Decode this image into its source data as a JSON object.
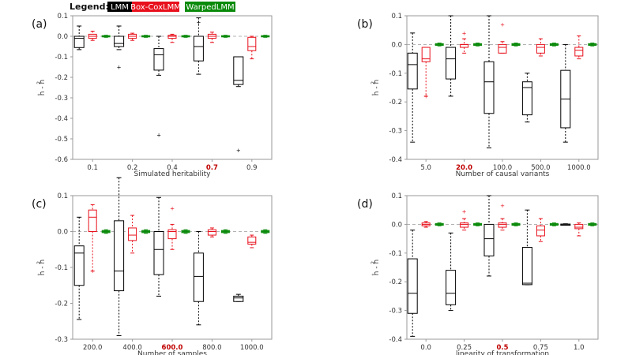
{
  "legend": {
    "title": "Legend:",
    "items": [
      {
        "label": "LMM",
        "bg": "#000000",
        "fg": "#ffffff"
      },
      {
        "label": "Box-CoxLMM",
        "bg": "#e8101c",
        "fg": "#ffffff"
      },
      {
        "label": "WarpedLMM",
        "bg": "#0a8a0a",
        "fg": "#ffffff"
      }
    ]
  },
  "colors": {
    "LMM": "#000000",
    "Box-CoxLMM": "#e8101c",
    "WarpedLMM": "#0a8a0a",
    "highlight": "#c00000",
    "zero_line": "#9a9a9a",
    "axis": "#999999"
  },
  "chart_data": [
    {
      "type": "box",
      "panel_label": "(a)",
      "xlabel": "Simulated heritability",
      "ylabel_num": "2",
      "ylabel_text": "ĥ  - h",
      "categories": [
        "0.1",
        "0.2",
        "0.4",
        "0.7",
        "0.9"
      ],
      "highlight_index": 3,
      "ylim": [
        -0.6,
        0.1
      ],
      "yticks": [
        -0.6,
        -0.5,
        -0.4,
        -0.3,
        -0.2,
        -0.1,
        0.0,
        0.1
      ],
      "series": [
        {
          "name": "LMM",
          "boxes": [
            {
              "whislo": -0.065,
              "q1": -0.055,
              "med": -0.01,
              "q3": 0.0,
              "whishi": 0.05,
              "fliers": []
            },
            {
              "whislo": -0.065,
              "q1": -0.05,
              "med": -0.035,
              "q3": 0.0,
              "whishi": 0.05,
              "fliers": [
                -0.15
              ]
            },
            {
              "whislo": -0.19,
              "q1": -0.165,
              "med": -0.09,
              "q3": -0.06,
              "whishi": 0.0,
              "fliers": [
                -0.48
              ]
            },
            {
              "whislo": -0.185,
              "q1": -0.12,
              "med": -0.05,
              "q3": 0.0,
              "whishi": 0.09,
              "fliers": [
                0.07
              ]
            },
            {
              "whislo": -0.245,
              "q1": -0.235,
              "med": -0.215,
              "q3": -0.1,
              "whishi": -0.1,
              "fliers": [
                -0.555
              ]
            }
          ]
        },
        {
          "name": "Box-CoxLMM",
          "boxes": [
            {
              "whislo": -0.02,
              "q1": -0.01,
              "med": 0.0,
              "q3": 0.01,
              "whishi": 0.025,
              "fliers": []
            },
            {
              "whislo": -0.02,
              "q1": -0.01,
              "med": 0.0,
              "q3": 0.01,
              "whishi": 0.015,
              "fliers": []
            },
            {
              "whislo": -0.03,
              "q1": -0.01,
              "med": 0.0,
              "q3": 0.005,
              "whishi": 0.01,
              "fliers": []
            },
            {
              "whislo": -0.03,
              "q1": -0.01,
              "med": 0.0,
              "q3": 0.01,
              "whishi": 0.02,
              "fliers": []
            },
            {
              "whislo": -0.11,
              "q1": -0.07,
              "med": -0.05,
              "q3": -0.005,
              "whishi": 0.0,
              "fliers": []
            }
          ]
        },
        {
          "name": "WarpedLMM",
          "boxes": [
            {
              "whislo": -0.005,
              "q1": -0.003,
              "med": 0.0,
              "q3": 0.003,
              "whishi": 0.005,
              "fliers": []
            },
            {
              "whislo": -0.005,
              "q1": -0.003,
              "med": 0.0,
              "q3": 0.003,
              "whishi": 0.005,
              "fliers": []
            },
            {
              "whislo": -0.005,
              "q1": -0.003,
              "med": 0.0,
              "q3": 0.003,
              "whishi": 0.005,
              "fliers": []
            },
            {
              "whislo": -0.005,
              "q1": -0.003,
              "med": 0.0,
              "q3": 0.003,
              "whishi": 0.005,
              "fliers": []
            },
            {
              "whislo": -0.005,
              "q1": -0.003,
              "med": 0.0,
              "q3": 0.003,
              "whishi": 0.005,
              "fliers": []
            }
          ]
        }
      ]
    },
    {
      "type": "box",
      "panel_label": "(b)",
      "xlabel": "Number of causal variants",
      "ylabel_num": "2",
      "ylabel_text": "ĥ  - h",
      "categories": [
        "5.0",
        "20.0",
        "100.0",
        "500.0",
        "1000.0"
      ],
      "highlight_index": 1,
      "ylim": [
        -0.4,
        0.1
      ],
      "yticks": [
        -0.4,
        -0.3,
        -0.2,
        -0.1,
        0.0,
        0.1
      ],
      "series": [
        {
          "name": "LMM",
          "boxes": [
            {
              "whislo": -0.34,
              "q1": -0.155,
              "med": -0.07,
              "q3": -0.03,
              "whishi": 0.04,
              "fliers": []
            },
            {
              "whislo": -0.18,
              "q1": -0.12,
              "med": -0.05,
              "q3": -0.01,
              "whishi": 0.1,
              "fliers": []
            },
            {
              "whislo": -0.36,
              "q1": -0.24,
              "med": -0.13,
              "q3": -0.06,
              "whishi": 0.1,
              "fliers": []
            },
            {
              "whislo": -0.27,
              "q1": -0.245,
              "med": -0.15,
              "q3": -0.13,
              "whishi": -0.1,
              "fliers": []
            },
            {
              "whislo": -0.34,
              "q1": -0.29,
              "med": -0.19,
              "q3": -0.09,
              "whishi": 0.0,
              "fliers": []
            }
          ]
        },
        {
          "name": "Box-CoxLMM",
          "boxes": [
            {
              "whislo": -0.18,
              "q1": -0.06,
              "med": -0.05,
              "q3": -0.01,
              "whishi": -0.01,
              "fliers": [
                -0.18
              ]
            },
            {
              "whislo": -0.03,
              "q1": -0.01,
              "med": 0.0,
              "q3": 0.0,
              "whishi": 0.02,
              "fliers": [
                0.04
              ]
            },
            {
              "whislo": -0.03,
              "q1": -0.03,
              "med": -0.01,
              "q3": 0.0,
              "whishi": 0.01,
              "fliers": [
                0.07
              ]
            },
            {
              "whislo": -0.04,
              "q1": -0.03,
              "med": -0.01,
              "q3": 0.0,
              "whishi": 0.02,
              "fliers": []
            },
            {
              "whislo": -0.05,
              "q1": -0.04,
              "med": -0.02,
              "q3": -0.01,
              "whishi": 0.03,
              "fliers": []
            }
          ]
        },
        {
          "name": "WarpedLMM",
          "boxes": [
            {
              "whislo": -0.005,
              "q1": -0.003,
              "med": 0.0,
              "q3": 0.003,
              "whishi": 0.005,
              "fliers": []
            },
            {
              "whislo": -0.005,
              "q1": -0.003,
              "med": 0.0,
              "q3": 0.003,
              "whishi": 0.005,
              "fliers": []
            },
            {
              "whislo": -0.005,
              "q1": -0.003,
              "med": 0.0,
              "q3": 0.003,
              "whishi": 0.005,
              "fliers": []
            },
            {
              "whislo": -0.005,
              "q1": -0.003,
              "med": 0.0,
              "q3": 0.003,
              "whishi": 0.005,
              "fliers": []
            },
            {
              "whislo": -0.005,
              "q1": -0.003,
              "med": 0.0,
              "q3": 0.003,
              "whishi": 0.005,
              "fliers": []
            }
          ]
        }
      ]
    },
    {
      "type": "box",
      "panel_label": "(c)",
      "xlabel": "Number of samples",
      "ylabel_num": "2",
      "ylabel_text": "ĥ  - h",
      "categories": [
        "200.0",
        "400.0",
        "600.0",
        "800.0",
        "1000.0"
      ],
      "highlight_index": 2,
      "ylim": [
        -0.3,
        0.1
      ],
      "yticks": [
        -0.3,
        -0.2,
        -0.1,
        0.0,
        0.1
      ],
      "series": [
        {
          "name": "LMM",
          "boxes": [
            {
              "whislo": -0.245,
              "q1": -0.15,
              "med": -0.06,
              "q3": -0.04,
              "whishi": 0.04,
              "fliers": []
            },
            {
              "whislo": -0.29,
              "q1": -0.165,
              "med": -0.11,
              "q3": 0.03,
              "whishi": 0.15,
              "fliers": []
            },
            {
              "whislo": -0.18,
              "q1": -0.12,
              "med": -0.05,
              "q3": 0.0,
              "whishi": 0.095,
              "fliers": []
            },
            {
              "whislo": -0.26,
              "q1": -0.195,
              "med": -0.125,
              "q3": -0.06,
              "whishi": 0.0,
              "fliers": []
            },
            {
              "whislo": -0.195,
              "q1": -0.195,
              "med": -0.185,
              "q3": -0.18,
              "whishi": -0.175,
              "fliers": []
            }
          ]
        },
        {
          "name": "Box-CoxLMM",
          "boxes": [
            {
              "whislo": -0.11,
              "q1": 0.0,
              "med": 0.04,
              "q3": 0.06,
              "whishi": 0.075,
              "fliers": [
                -0.11
              ]
            },
            {
              "whislo": -0.06,
              "q1": -0.025,
              "med": -0.01,
              "q3": 0.01,
              "whishi": 0.045,
              "fliers": []
            },
            {
              "whislo": -0.05,
              "q1": -0.02,
              "med": 0.0,
              "q3": 0.005,
              "whishi": 0.02,
              "fliers": [
                0.065
              ]
            },
            {
              "whislo": -0.015,
              "q1": -0.01,
              "med": 0.0,
              "q3": 0.005,
              "whishi": 0.01,
              "fliers": []
            },
            {
              "whislo": -0.045,
              "q1": -0.035,
              "med": -0.03,
              "q3": -0.015,
              "whishi": -0.01,
              "fliers": []
            }
          ]
        },
        {
          "name": "WarpedLMM",
          "boxes": [
            {
              "whislo": -0.005,
              "q1": -0.003,
              "med": 0.0,
              "q3": 0.003,
              "whishi": 0.005,
              "fliers": []
            },
            {
              "whislo": -0.005,
              "q1": -0.003,
              "med": 0.0,
              "q3": 0.003,
              "whishi": 0.005,
              "fliers": []
            },
            {
              "whislo": -0.005,
              "q1": -0.003,
              "med": 0.0,
              "q3": 0.003,
              "whishi": 0.005,
              "fliers": []
            },
            {
              "whislo": -0.005,
              "q1": -0.003,
              "med": 0.0,
              "q3": 0.003,
              "whishi": 0.005,
              "fliers": []
            },
            {
              "whislo": -0.005,
              "q1": -0.003,
              "med": 0.0,
              "q3": 0.003,
              "whishi": 0.005,
              "fliers": []
            }
          ]
        }
      ]
    },
    {
      "type": "box",
      "panel_label": "(d)",
      "xlabel": "linearity of transformation",
      "ylabel_num": "2",
      "ylabel_text": "ĥ  - h",
      "categories": [
        "0.0",
        "0.25",
        "0.5",
        "0.75",
        "1.0"
      ],
      "highlight_index": 2,
      "ylim": [
        -0.4,
        0.1
      ],
      "yticks": [
        -0.4,
        -0.3,
        -0.2,
        -0.1,
        0.0,
        0.1
      ],
      "series": [
        {
          "name": "LMM",
          "boxes": [
            {
              "whislo": -0.39,
              "q1": -0.31,
              "med": -0.24,
              "q3": -0.12,
              "whishi": -0.02,
              "fliers": []
            },
            {
              "whislo": -0.3,
              "q1": -0.28,
              "med": -0.24,
              "q3": -0.16,
              "whishi": -0.03,
              "fliers": []
            },
            {
              "whislo": -0.18,
              "q1": -0.11,
              "med": -0.05,
              "q3": 0.0,
              "whishi": 0.1,
              "fliers": []
            },
            {
              "whislo": -0.21,
              "q1": -0.21,
              "med": -0.205,
              "q3": -0.08,
              "whishi": 0.05,
              "fliers": []
            },
            {
              "whislo": -0.002,
              "q1": -0.001,
              "med": 0.0,
              "q3": 0.001,
              "whishi": 0.002,
              "fliers": []
            }
          ]
        },
        {
          "name": "Box-CoxLMM",
          "boxes": [
            {
              "whislo": -0.01,
              "q1": -0.005,
              "med": 0.0,
              "q3": 0.005,
              "whishi": 0.01,
              "fliers": []
            },
            {
              "whislo": -0.02,
              "q1": -0.01,
              "med": 0.0,
              "q3": 0.005,
              "whishi": 0.02,
              "fliers": [
                0.045
              ]
            },
            {
              "whislo": -0.02,
              "q1": -0.01,
              "med": 0.0,
              "q3": 0.005,
              "whishi": 0.02,
              "fliers": [
                0.065
              ]
            },
            {
              "whislo": -0.06,
              "q1": -0.04,
              "med": -0.02,
              "q3": -0.005,
              "whishi": 0.02,
              "fliers": []
            },
            {
              "whislo": -0.04,
              "q1": -0.015,
              "med": -0.01,
              "q3": 0.0,
              "whishi": 0.005,
              "fliers": []
            }
          ]
        },
        {
          "name": "WarpedLMM",
          "boxes": [
            {
              "whislo": -0.005,
              "q1": -0.003,
              "med": 0.0,
              "q3": 0.003,
              "whishi": 0.005,
              "fliers": []
            },
            {
              "whislo": -0.005,
              "q1": -0.003,
              "med": 0.0,
              "q3": 0.003,
              "whishi": 0.005,
              "fliers": []
            },
            {
              "whislo": -0.005,
              "q1": -0.003,
              "med": 0.0,
              "q3": 0.003,
              "whishi": 0.005,
              "fliers": []
            },
            {
              "whislo": -0.005,
              "q1": -0.003,
              "med": 0.0,
              "q3": 0.003,
              "whishi": 0.005,
              "fliers": []
            },
            {
              "whislo": -0.005,
              "q1": -0.003,
              "med": 0.0,
              "q3": 0.003,
              "whishi": 0.005,
              "fliers": []
            }
          ]
        }
      ]
    }
  ]
}
